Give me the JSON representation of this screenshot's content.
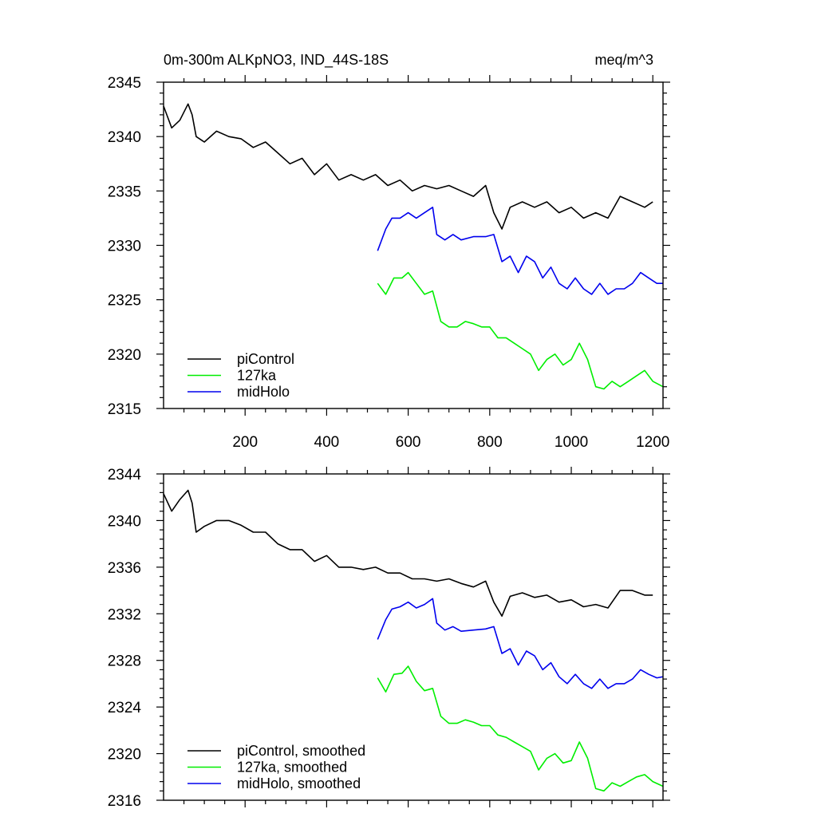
{
  "chart_data": [
    {
      "type": "line",
      "title_left": "0m-300m ALKpNO3, IND_44S-18S",
      "title_right": "meq/m^3",
      "xlim": [
        0,
        1225
      ],
      "ylim": [
        2315,
        2345
      ],
      "xticks": [
        200,
        400,
        600,
        800,
        1000,
        1200
      ],
      "yticks": [
        2315,
        2320,
        2325,
        2330,
        2335,
        2340,
        2345
      ],
      "grid": false,
      "legend_position": "bottom-left",
      "series": [
        {
          "name": "piControl",
          "color": "#000000",
          "points": [
            [
              0,
              2342.8
            ],
            [
              20,
              2340.8
            ],
            [
              40,
              2341.5
            ],
            [
              60,
              2343.0
            ],
            [
              70,
              2342.0
            ],
            [
              80,
              2340.0
            ],
            [
              100,
              2339.5
            ],
            [
              130,
              2340.5
            ],
            [
              160,
              2340.0
            ],
            [
              190,
              2339.8
            ],
            [
              220,
              2339.0
            ],
            [
              250,
              2339.5
            ],
            [
              280,
              2338.5
            ],
            [
              310,
              2337.5
            ],
            [
              340,
              2338.0
            ],
            [
              370,
              2336.5
            ],
            [
              400,
              2337.5
            ],
            [
              430,
              2336.0
            ],
            [
              460,
              2336.5
            ],
            [
              490,
              2336.0
            ],
            [
              520,
              2336.5
            ],
            [
              550,
              2335.5
            ],
            [
              580,
              2336.0
            ],
            [
              610,
              2335.0
            ],
            [
              640,
              2335.5
            ],
            [
              670,
              2335.2
            ],
            [
              700,
              2335.5
            ],
            [
              730,
              2335.0
            ],
            [
              760,
              2334.5
            ],
            [
              790,
              2335.5
            ],
            [
              810,
              2333.0
            ],
            [
              830,
              2331.5
            ],
            [
              850,
              2333.5
            ],
            [
              880,
              2334.0
            ],
            [
              910,
              2333.5
            ],
            [
              940,
              2334.0
            ],
            [
              970,
              2333.0
            ],
            [
              1000,
              2333.5
            ],
            [
              1030,
              2332.5
            ],
            [
              1060,
              2333.0
            ],
            [
              1090,
              2332.5
            ],
            [
              1120,
              2334.5
            ],
            [
              1150,
              2334.0
            ],
            [
              1180,
              2333.5
            ],
            [
              1200,
              2334.0
            ]
          ]
        },
        {
          "name": "127ka",
          "color": "#00ee00",
          "points": [
            [
              525,
              2326.5
            ],
            [
              545,
              2325.5
            ],
            [
              565,
              2327.0
            ],
            [
              585,
              2327.0
            ],
            [
              600,
              2327.5
            ],
            [
              620,
              2326.5
            ],
            [
              640,
              2325.5
            ],
            [
              660,
              2325.8
            ],
            [
              680,
              2323.0
            ],
            [
              700,
              2322.5
            ],
            [
              720,
              2322.5
            ],
            [
              740,
              2323.0
            ],
            [
              760,
              2322.8
            ],
            [
              780,
              2322.5
            ],
            [
              800,
              2322.5
            ],
            [
              820,
              2321.5
            ],
            [
              840,
              2321.5
            ],
            [
              860,
              2321.0
            ],
            [
              880,
              2320.5
            ],
            [
              900,
              2320.0
            ],
            [
              920,
              2318.5
            ],
            [
              940,
              2319.5
            ],
            [
              960,
              2320.0
            ],
            [
              980,
              2319.0
            ],
            [
              1000,
              2319.5
            ],
            [
              1020,
              2321.0
            ],
            [
              1040,
              2319.5
            ],
            [
              1060,
              2317.0
            ],
            [
              1080,
              2316.8
            ],
            [
              1100,
              2317.5
            ],
            [
              1120,
              2317.0
            ],
            [
              1140,
              2317.5
            ],
            [
              1160,
              2318.0
            ],
            [
              1180,
              2318.5
            ],
            [
              1200,
              2317.5
            ],
            [
              1225,
              2317.0
            ]
          ]
        },
        {
          "name": "midHolo",
          "color": "#0000ee",
          "points": [
            [
              525,
              2329.5
            ],
            [
              545,
              2331.5
            ],
            [
              560,
              2332.5
            ],
            [
              580,
              2332.5
            ],
            [
              600,
              2333.0
            ],
            [
              620,
              2332.5
            ],
            [
              640,
              2333.0
            ],
            [
              660,
              2333.5
            ],
            [
              670,
              2331.0
            ],
            [
              690,
              2330.5
            ],
            [
              710,
              2331.0
            ],
            [
              730,
              2330.5
            ],
            [
              760,
              2330.8
            ],
            [
              790,
              2330.8
            ],
            [
              810,
              2331.0
            ],
            [
              830,
              2328.5
            ],
            [
              850,
              2329.0
            ],
            [
              870,
              2327.5
            ],
            [
              890,
              2329.0
            ],
            [
              910,
              2328.5
            ],
            [
              930,
              2327.0
            ],
            [
              950,
              2328.0
            ],
            [
              970,
              2326.5
            ],
            [
              990,
              2326.0
            ],
            [
              1010,
              2327.0
            ],
            [
              1030,
              2326.0
            ],
            [
              1050,
              2325.5
            ],
            [
              1070,
              2326.5
            ],
            [
              1090,
              2325.5
            ],
            [
              1110,
              2326.0
            ],
            [
              1130,
              2326.0
            ],
            [
              1150,
              2326.5
            ],
            [
              1170,
              2327.5
            ],
            [
              1190,
              2327.0
            ],
            [
              1210,
              2326.5
            ],
            [
              1225,
              2326.5
            ]
          ]
        }
      ]
    },
    {
      "type": "line",
      "xlim": [
        0,
        1225
      ],
      "ylim": [
        2316,
        2344
      ],
      "xticks": [
        200,
        400,
        600,
        800,
        1000,
        1200
      ],
      "yticks": [
        2316,
        2320,
        2324,
        2328,
        2332,
        2336,
        2340,
        2344
      ],
      "grid": false,
      "legend_position": "bottom-left",
      "series": [
        {
          "name": "piControl, smoothed",
          "color": "#000000",
          "points": [
            [
              0,
              2342.3
            ],
            [
              20,
              2340.8
            ],
            [
              40,
              2341.8
            ],
            [
              60,
              2342.6
            ],
            [
              70,
              2341.5
            ],
            [
              80,
              2339.0
            ],
            [
              100,
              2339.5
            ],
            [
              130,
              2340.0
            ],
            [
              160,
              2340.0
            ],
            [
              190,
              2339.6
            ],
            [
              220,
              2339.0
            ],
            [
              250,
              2339.0
            ],
            [
              280,
              2338.0
            ],
            [
              310,
              2337.5
            ],
            [
              340,
              2337.5
            ],
            [
              370,
              2336.5
            ],
            [
              400,
              2337.0
            ],
            [
              430,
              2336.0
            ],
            [
              460,
              2336.0
            ],
            [
              490,
              2335.8
            ],
            [
              520,
              2336.0
            ],
            [
              550,
              2335.5
            ],
            [
              580,
              2335.5
            ],
            [
              610,
              2335.0
            ],
            [
              640,
              2335.0
            ],
            [
              670,
              2334.8
            ],
            [
              700,
              2335.0
            ],
            [
              730,
              2334.6
            ],
            [
              760,
              2334.3
            ],
            [
              790,
              2334.8
            ],
            [
              810,
              2333.0
            ],
            [
              830,
              2331.8
            ],
            [
              850,
              2333.5
            ],
            [
              880,
              2333.8
            ],
            [
              910,
              2333.4
            ],
            [
              940,
              2333.6
            ],
            [
              970,
              2333.0
            ],
            [
              1000,
              2333.2
            ],
            [
              1030,
              2332.6
            ],
            [
              1060,
              2332.8
            ],
            [
              1090,
              2332.5
            ],
            [
              1120,
              2334.0
            ],
            [
              1150,
              2334.0
            ],
            [
              1180,
              2333.6
            ],
            [
              1200,
              2333.6
            ]
          ]
        },
        {
          "name": "127ka, smoothed",
          "color": "#00ee00",
          "points": [
            [
              525,
              2326.5
            ],
            [
              545,
              2325.3
            ],
            [
              565,
              2326.8
            ],
            [
              585,
              2326.9
            ],
            [
              600,
              2327.5
            ],
            [
              620,
              2326.2
            ],
            [
              640,
              2325.4
            ],
            [
              660,
              2325.6
            ],
            [
              680,
              2323.2
            ],
            [
              700,
              2322.6
            ],
            [
              720,
              2322.6
            ],
            [
              740,
              2322.9
            ],
            [
              760,
              2322.7
            ],
            [
              780,
              2322.4
            ],
            [
              800,
              2322.4
            ],
            [
              820,
              2321.6
            ],
            [
              840,
              2321.4
            ],
            [
              860,
              2321.0
            ],
            [
              880,
              2320.6
            ],
            [
              900,
              2320.2
            ],
            [
              920,
              2318.6
            ],
            [
              940,
              2319.6
            ],
            [
              960,
              2320.0
            ],
            [
              980,
              2319.2
            ],
            [
              1000,
              2319.4
            ],
            [
              1020,
              2321.0
            ],
            [
              1040,
              2319.6
            ],
            [
              1060,
              2317.0
            ],
            [
              1080,
              2316.8
            ],
            [
              1100,
              2317.5
            ],
            [
              1120,
              2317.2
            ],
            [
              1140,
              2317.6
            ],
            [
              1160,
              2318.0
            ],
            [
              1180,
              2318.2
            ],
            [
              1200,
              2317.6
            ],
            [
              1225,
              2317.2
            ]
          ]
        },
        {
          "name": "midHolo, smoothed",
          "color": "#0000ee",
          "points": [
            [
              525,
              2329.8
            ],
            [
              545,
              2331.5
            ],
            [
              560,
              2332.4
            ],
            [
              580,
              2332.6
            ],
            [
              600,
              2333.0
            ],
            [
              620,
              2332.5
            ],
            [
              640,
              2332.8
            ],
            [
              660,
              2333.3
            ],
            [
              670,
              2331.2
            ],
            [
              690,
              2330.6
            ],
            [
              710,
              2330.9
            ],
            [
              730,
              2330.5
            ],
            [
              760,
              2330.6
            ],
            [
              790,
              2330.7
            ],
            [
              810,
              2330.9
            ],
            [
              830,
              2328.6
            ],
            [
              850,
              2329.0
            ],
            [
              870,
              2327.6
            ],
            [
              890,
              2328.8
            ],
            [
              910,
              2328.4
            ],
            [
              930,
              2327.2
            ],
            [
              950,
              2327.8
            ],
            [
              970,
              2326.6
            ],
            [
              990,
              2326.0
            ],
            [
              1010,
              2326.8
            ],
            [
              1030,
              2326.0
            ],
            [
              1050,
              2325.6
            ],
            [
              1070,
              2326.4
            ],
            [
              1090,
              2325.6
            ],
            [
              1110,
              2326.0
            ],
            [
              1130,
              2326.0
            ],
            [
              1150,
              2326.4
            ],
            [
              1170,
              2327.2
            ],
            [
              1190,
              2326.8
            ],
            [
              1210,
              2326.5
            ],
            [
              1225,
              2326.6
            ]
          ]
        }
      ]
    }
  ]
}
